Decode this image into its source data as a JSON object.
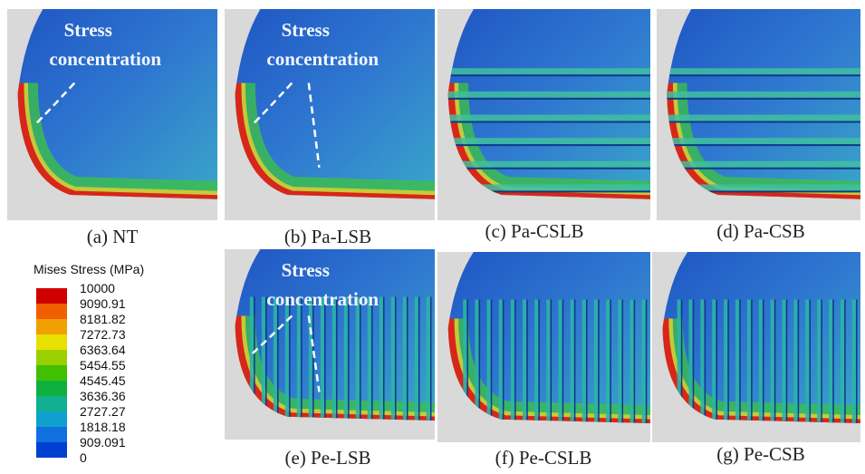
{
  "panels": [
    {
      "caption": "(a) NT",
      "annotation": [
        "Stress",
        "concentration"
      ]
    },
    {
      "caption": "(b) Pa-LSB",
      "annotation": [
        "Stress",
        "concentration"
      ]
    },
    {
      "caption": "(c) Pa-CSLB"
    },
    {
      "caption": "(d) Pa-CSB"
    },
    {
      "caption": "(e) Pe-LSB",
      "annotation": [
        "Stress",
        "concentration"
      ]
    },
    {
      "caption": "(f) Pe-CSLB"
    },
    {
      "caption": "(g) Pe-CSB"
    }
  ],
  "legend": {
    "title": "Mises Stress (MPa)",
    "labels": [
      "10000",
      "9090.91",
      "8181.82",
      "7272.73",
      "6363.64",
      "5454.55",
      "4545.45",
      "3636.36",
      "2727.27",
      "1818.18",
      "909.091",
      "0"
    ]
  }
}
